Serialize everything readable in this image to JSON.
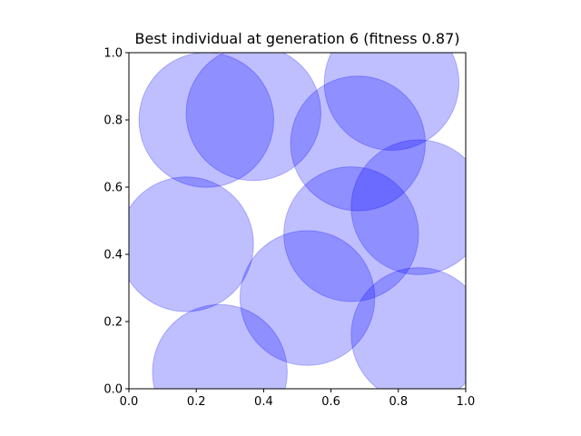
{
  "chart_data": {
    "type": "scatter",
    "title": "Best individual at generation 6 (fitness 0.87)",
    "xlabel": "",
    "ylabel": "",
    "xlim": [
      0.0,
      1.0
    ],
    "ylim": [
      0.0,
      1.0
    ],
    "grid": false,
    "aspect": "equal",
    "x_ticks": [
      "0.0",
      "0.2",
      "0.4",
      "0.6",
      "0.8",
      "1.0"
    ],
    "y_ticks": [
      "0.0",
      "0.2",
      "0.4",
      "0.6",
      "0.8",
      "1.0"
    ],
    "marker": "circle",
    "fill_color": "#0000ff",
    "fill_alpha": 0.25,
    "circles": [
      {
        "x": 0.23,
        "y": 0.8,
        "r": 0.2
      },
      {
        "x": 0.37,
        "y": 0.82,
        "r": 0.2
      },
      {
        "x": 0.78,
        "y": 0.91,
        "r": 0.2
      },
      {
        "x": 0.68,
        "y": 0.73,
        "r": 0.2
      },
      {
        "x": 0.86,
        "y": 0.54,
        "r": 0.2
      },
      {
        "x": 0.17,
        "y": 0.43,
        "r": 0.2
      },
      {
        "x": 0.66,
        "y": 0.46,
        "r": 0.2
      },
      {
        "x": 0.53,
        "y": 0.27,
        "r": 0.2
      },
      {
        "x": 0.86,
        "y": 0.16,
        "r": 0.2
      },
      {
        "x": 0.27,
        "y": 0.05,
        "r": 0.2
      }
    ]
  }
}
